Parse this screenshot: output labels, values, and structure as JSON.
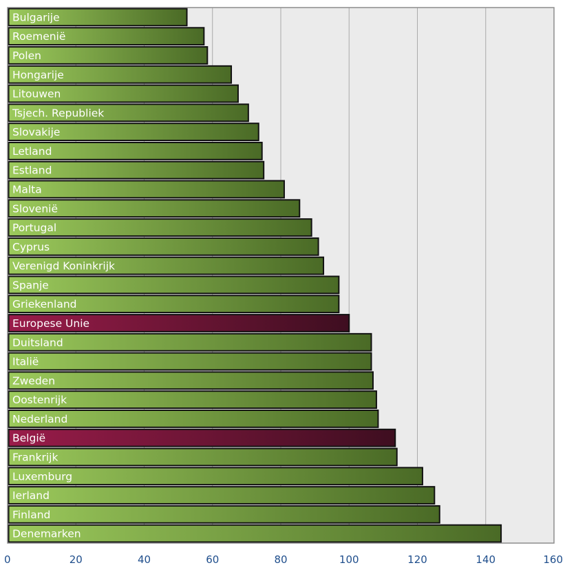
{
  "chart_data": {
    "type": "bar",
    "orientation": "horizontal",
    "categories": [
      "Bulgarije",
      "Roemenië",
      "Polen",
      "Hongarije",
      "Litouwen",
      "Tsjech. Republiek",
      "Slovakije",
      "Letland",
      "Estland",
      "Malta",
      "Slovenië",
      "Portugal",
      "Cyprus",
      "Verenigd Koninkrijk",
      "Spanje",
      "Griekenland",
      "Europese Unie",
      "Duitsland",
      "Italië",
      "Zweden",
      "Oostenrijk",
      "Nederland",
      "België",
      "Frankrijk",
      "Luxemburg",
      "Ierland",
      "Finland",
      "Denemarken"
    ],
    "values": [
      52.5,
      57.5,
      58.5,
      65.5,
      67.5,
      70.5,
      73.5,
      74.5,
      75,
      81,
      85.5,
      89,
      91,
      92.5,
      97,
      97,
      100,
      106.5,
      106.5,
      107,
      108,
      108.5,
      113.5,
      114,
      121.5,
      125,
      126.5,
      144.5
    ],
    "highlighted_categories": [
      "Europese Unie",
      "België"
    ],
    "xlim": [
      0,
      160
    ],
    "xticks": [
      0,
      20,
      40,
      60,
      80,
      100,
      120,
      140,
      160
    ],
    "title": "",
    "xlabel": "",
    "ylabel": "",
    "grid": "vertical",
    "colors": {
      "bar_light": "#9cca5c",
      "bar_dark": "#4a6a26",
      "highlight_light": "#9a1c4a",
      "highlight_dark": "#3e0e20",
      "bar_border": "#111111",
      "background": "#ebebeb",
      "grid": "#aaaaaa",
      "tick_text": "#1f4e8c"
    }
  }
}
